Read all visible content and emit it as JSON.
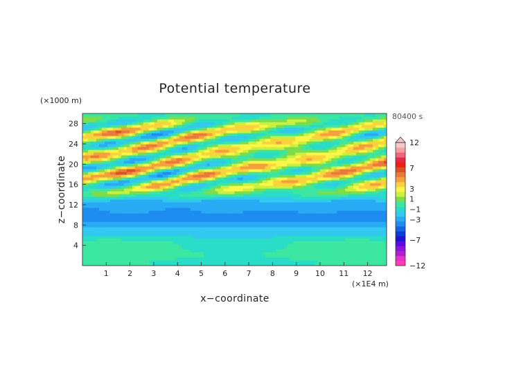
{
  "chart_data": {
    "type": "heatmap",
    "title": "Potential temperature",
    "time_label": "80400 s",
    "xlabel": "x−coordinate",
    "ylabel": "z−coordinate",
    "x_unit": "(×1E4 m)",
    "y_unit": "(×1000 m)",
    "xlim": [
      0,
      12.8
    ],
    "ylim": [
      0,
      30
    ],
    "x_ticks": [
      "1",
      "2",
      "3",
      "4",
      "5",
      "6",
      "7",
      "8",
      "9",
      "10",
      "11",
      "12"
    ],
    "y_ticks": [
      "4",
      "8",
      "12",
      "16",
      "20",
      "24",
      "28"
    ],
    "colorbar": {
      "levels": [
        -12,
        -11,
        -10,
        -9,
        -8,
        -7,
        -6,
        -5,
        -4,
        -3,
        -2,
        -1,
        0,
        1,
        2,
        3,
        4,
        5,
        6,
        7,
        8,
        9,
        10,
        11,
        12
      ],
      "labels": [
        "12",
        "7",
        "3",
        "1",
        "−1",
        "−3",
        "−7",
        "−12"
      ],
      "colors": [
        "#ff3cb4",
        "#e632c8",
        "#b41ed2",
        "#8c14dc",
        "#5a0ae6",
        "#1e14d2",
        "#0a3cdc",
        "#1464e6",
        "#1e8cf0",
        "#28aaf5",
        "#32c8f0",
        "#28dcc8",
        "#3ce6a0",
        "#7ddc4b",
        "#c8f03c",
        "#faf546",
        "#fad23c",
        "#f5a03c",
        "#eb783c",
        "#dc5028",
        "#f01e14",
        "#e62846",
        "#f0647d",
        "#f5a0a0",
        "#f5c8c8"
      ],
      "extends_max": true
    }
  }
}
